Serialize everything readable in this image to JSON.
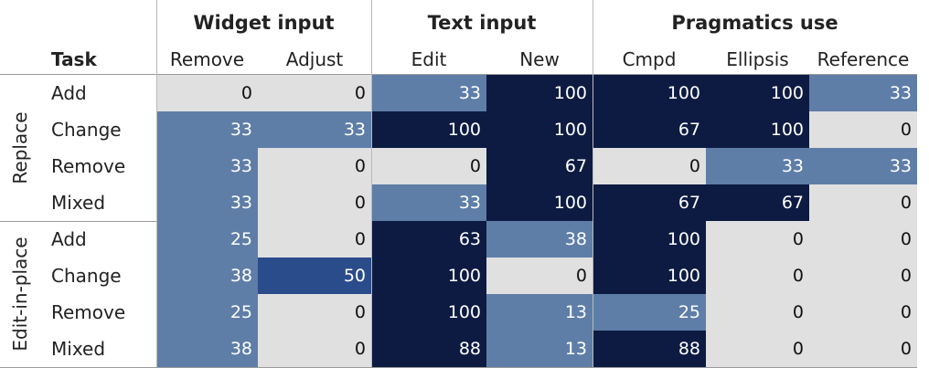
{
  "chart_data": {
    "type": "heatmap",
    "task_header": "Task",
    "groups": [
      {
        "name": "Widget input",
        "columns": [
          "Remove",
          "Adjust"
        ]
      },
      {
        "name": "Text input",
        "columns": [
          "Edit",
          "New"
        ]
      },
      {
        "name": "Pragmatics use",
        "columns": [
          "Cmpd",
          "Ellipsis",
          "Reference"
        ]
      }
    ],
    "sections": [
      {
        "name": "Replace",
        "rows": [
          {
            "task": "Add",
            "values": [
              0,
              0,
              33,
              100,
              100,
              100,
              33
            ]
          },
          {
            "task": "Change",
            "values": [
              33,
              33,
              100,
              100,
              67,
              100,
              0
            ]
          },
          {
            "task": "Remove",
            "values": [
              33,
              0,
              0,
              67,
              0,
              33,
              33
            ]
          },
          {
            "task": "Mixed",
            "values": [
              33,
              0,
              33,
              100,
              67,
              67,
              0
            ]
          }
        ]
      },
      {
        "name": "Edit-in-place",
        "rows": [
          {
            "task": "Add",
            "values": [
              25,
              0,
              63,
              38,
              100,
              0,
              0
            ]
          },
          {
            "task": "Change",
            "values": [
              38,
              50,
              100,
              0,
              100,
              0,
              0
            ]
          },
          {
            "task": "Remove",
            "values": [
              25,
              0,
              100,
              13,
              25,
              0,
              0
            ]
          },
          {
            "task": "Mixed",
            "values": [
              38,
              0,
              88,
              13,
              88,
              0,
              0
            ]
          }
        ]
      }
    ],
    "colors": {
      "zero": "#e0e0e0",
      "low": "#5e7ea8",
      "mid": "#2a4c8a",
      "high": "#0d1b42"
    }
  }
}
